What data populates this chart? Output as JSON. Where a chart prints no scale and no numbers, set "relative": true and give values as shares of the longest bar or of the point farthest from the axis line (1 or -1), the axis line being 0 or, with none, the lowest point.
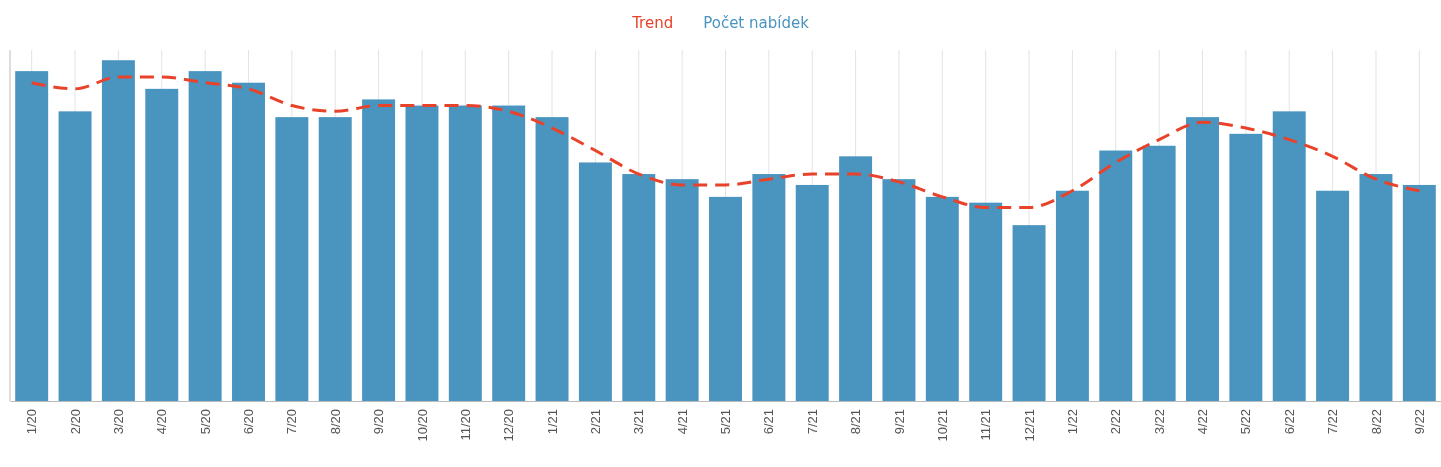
{
  "chart_data": {
    "type": "bar",
    "relative": true,
    "categories": [
      "1/20",
      "2/20",
      "3/20",
      "4/20",
      "5/20",
      "6/20",
      "7/20",
      "8/20",
      "9/20",
      "10/20",
      "11/20",
      "12/20",
      "1/21",
      "2/21",
      "3/21",
      "4/21",
      "5/21",
      "6/21",
      "7/21",
      "8/21",
      "9/21",
      "10/21",
      "11/21",
      "12/21",
      "1/22",
      "2/22",
      "3/22",
      "4/22",
      "5/22",
      "6/22",
      "7/22",
      "8/22",
      "9/22"
    ],
    "series": [
      {
        "name": "Trend",
        "type": "line",
        "color": "#e8432a",
        "line_style": "dashed",
        "marker": "none",
        "values": [
          0.934,
          0.916,
          0.951,
          0.951,
          0.934,
          0.916,
          0.867,
          0.85,
          0.867,
          0.867,
          0.867,
          0.85,
          0.801,
          0.735,
          0.666,
          0.634,
          0.634,
          0.651,
          0.666,
          0.666,
          0.643,
          0.599,
          0.568,
          0.568,
          0.617,
          0.7,
          0.767,
          0.818,
          0.801,
          0.767,
          0.718,
          0.651,
          0.617
        ]
      },
      {
        "name": "Počet nabídek",
        "color": "#4a94c0",
        "values": [
          0.968,
          0.85,
          1,
          0.916,
          0.968,
          0.934,
          0.833,
          0.833,
          0.885,
          0.867,
          0.867,
          0.867,
          0.833,
          0.7,
          0.666,
          0.651,
          0.599,
          0.666,
          0.634,
          0.718,
          0.651,
          0.599,
          0.582,
          0.516,
          0.617,
          0.735,
          0.749,
          0.833,
          0.784,
          0.85,
          0.617,
          0.666,
          0.634
        ]
      }
    ],
    "grid": "x",
    "legend": "top"
  }
}
